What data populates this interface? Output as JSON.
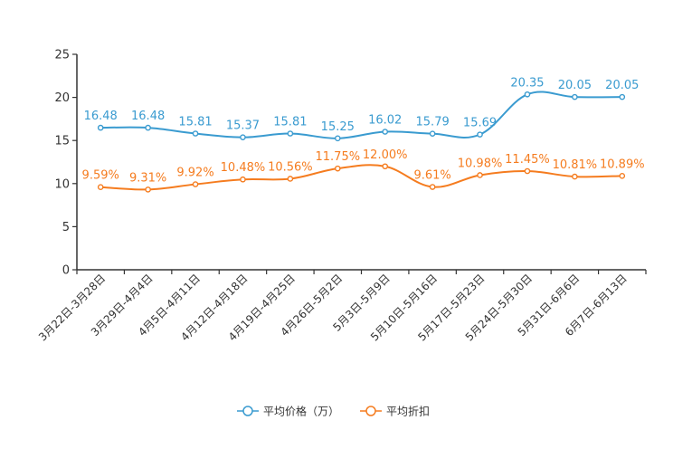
{
  "chart_data": {
    "type": "line",
    "title": "",
    "xlabel": "",
    "ylabel": "",
    "ylim": [
      0,
      25
    ],
    "yticks": [
      "0",
      "5",
      "10",
      "15",
      "20",
      "25"
    ],
    "grid": false,
    "legend_position": "bottom",
    "categories": [
      "3月22日-3月28日",
      "3月29日-4月4日",
      "4月5日-4月11日",
      "4月12日-4月18日",
      "4月19日-4月25日",
      "4月26日-5月2日",
      "5月3日-5月9日",
      "5月10日-5月16日",
      "5月17日-5月23日",
      "5月24日-5月30日",
      "5月31日-6月6日",
      "6月7日-6月13日"
    ],
    "series": [
      {
        "name": "平均价格（万）",
        "color": "#3a9bd0",
        "values": [
          16.48,
          16.48,
          15.81,
          15.37,
          15.81,
          15.25,
          16.02,
          15.79,
          15.69,
          20.35,
          20.05,
          20.05
        ],
        "labels": [
          "16.48",
          "16.48",
          "15.81",
          "15.37",
          "15.81",
          "15.25",
          "16.02",
          "15.79",
          "15.69",
          "20.35",
          "20.05",
          "20.05"
        ]
      },
      {
        "name": "平均折扣",
        "color": "#f57c1f",
        "values": [
          9.59,
          9.31,
          9.92,
          10.48,
          10.56,
          11.75,
          12.0,
          9.61,
          10.98,
          11.45,
          10.81,
          10.89
        ],
        "labels": [
          "9.59%",
          "9.31%",
          "9.92%",
          "10.48%",
          "10.56%",
          "11.75%",
          "12.00%",
          "9.61%",
          "10.98%",
          "11.45%",
          "10.81%",
          "10.89%"
        ]
      }
    ]
  }
}
